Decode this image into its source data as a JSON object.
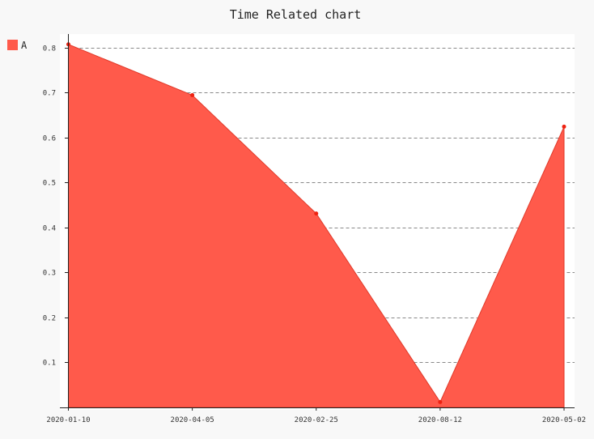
{
  "chart_data": {
    "type": "area",
    "title": "Time Related chart",
    "xlabel": "",
    "ylabel": "",
    "categories": [
      "2020-01-10",
      "2020-04-05",
      "2020-02-25",
      "2020-08-12",
      "2020-05-02"
    ],
    "series": [
      {
        "name": "A",
        "values": [
          0.807,
          0.694,
          0.431,
          0.012,
          0.624
        ],
        "color": "#ff5a4b"
      }
    ],
    "ylim": [
      0,
      0.83
    ],
    "yticks": [
      0.1,
      0.2,
      0.3,
      0.4,
      0.5,
      0.6,
      0.7,
      0.8
    ],
    "ytick_labels": [
      "0.1",
      "0.2",
      "0.3",
      "0.4",
      "0.5",
      "0.6",
      "0.7",
      "0.8"
    ],
    "grid": true,
    "legend": "top-left",
    "colors": {
      "area": "#ff5a4b",
      "dot": "#ee2211",
      "grid": "#888888",
      "background": "#f8f8f8",
      "plot_background": "#ffffff"
    }
  }
}
